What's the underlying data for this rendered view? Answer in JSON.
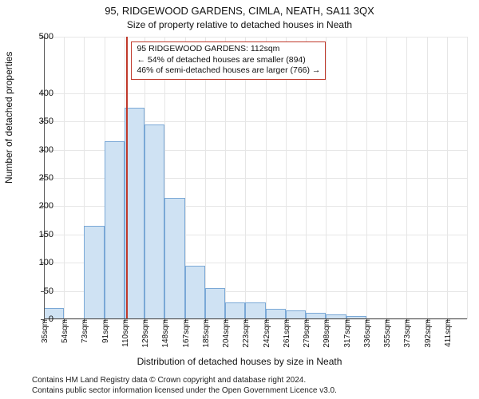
{
  "titles": {
    "line1": "95, RIDGEWOOD GARDENS, CIMLA, NEATH, SA11 3QX",
    "line2": "Size of property relative to detached houses in Neath"
  },
  "ylabel": "Number of detached properties",
  "xlabel": "Distribution of detached houses by size in Neath",
  "credits": {
    "line1": "Contains HM Land Registry data © Crown copyright and database right 2024.",
    "line2": "Contains public sector information licensed under the Open Government Licence v3.0."
  },
  "chart": {
    "type": "histogram",
    "ylim": [
      0,
      500
    ],
    "yticks": [
      0,
      50,
      100,
      150,
      200,
      250,
      300,
      350,
      400,
      500
    ],
    "xticks_labels": [
      "35sqm",
      "54sqm",
      "73sqm",
      "91sqm",
      "110sqm",
      "129sqm",
      "148sqm",
      "167sqm",
      "185sqm",
      "204sqm",
      "223sqm",
      "242sqm",
      "261sqm",
      "279sqm",
      "298sqm",
      "317sqm",
      "336sqm",
      "355sqm",
      "373sqm",
      "392sqm",
      "411sqm"
    ],
    "values": [
      20,
      0,
      165,
      315,
      375,
      345,
      215,
      95,
      55,
      30,
      30,
      18,
      15,
      12,
      8,
      5,
      0,
      0,
      0,
      0,
      0
    ],
    "bar_color": "#cfe2f3",
    "bar_border": "#7aa8d6",
    "grid_color": "#e6e6e6",
    "axis_color": "#555555",
    "background": "#ffffff",
    "marker": {
      "position_index": 4.1,
      "color": "#c0392b"
    }
  },
  "annotation": {
    "line1": "95 RIDGEWOOD GARDENS: 112sqm",
    "line2": "← 54% of detached houses are smaller (894)",
    "line3": "46% of semi-detached houses are larger (766) →",
    "border_color": "#c0392b"
  },
  "fontsize": {
    "title": 13,
    "subtitle": 12,
    "label": 12,
    "tick": 11,
    "annot": 10.5,
    "credit": 10
  }
}
